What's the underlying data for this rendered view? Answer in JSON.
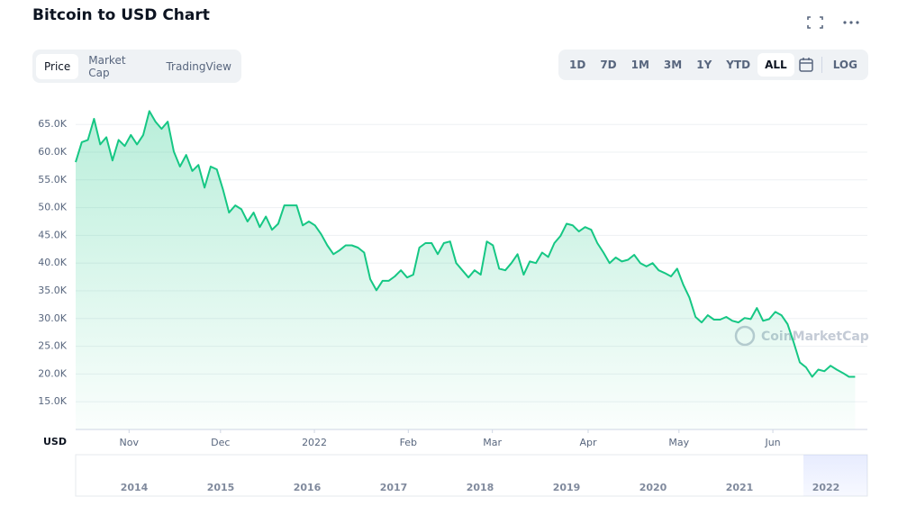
{
  "tabs": [
    "Price",
    "Market Cap",
    "TradingView"
  ],
  "ranges": [
    "1D",
    "7D",
    "1M",
    "3M",
    "1Y",
    "YTD",
    "ALL"
  ],
  "log_label": "LOG",
  "chart_data": {
    "type": "line",
    "title": "Bitcoin to USD Chart",
    "currency": "USD",
    "watermark": "CoinMarketCap",
    "color": "#16c784",
    "grid": true,
    "ylim": [
      10000,
      70000
    ],
    "yticks": [
      {
        "value": 15000,
        "label": "15.0K"
      },
      {
        "value": 20000,
        "label": "20.0K"
      },
      {
        "value": 25000,
        "label": "25.0K"
      },
      {
        "value": 30000,
        "label": "30.0K"
      },
      {
        "value": 35000,
        "label": "35.0K"
      },
      {
        "value": 40000,
        "label": "40.0K"
      },
      {
        "value": 45000,
        "label": "45.0K"
      },
      {
        "value": 50000,
        "label": "50.0K"
      },
      {
        "value": 55000,
        "label": "55.0K"
      },
      {
        "value": 60000,
        "label": "60.0K"
      },
      {
        "value": 65000,
        "label": "65.0K"
      }
    ],
    "xlim": [
      0,
      129
    ],
    "xticks": [
      {
        "value": 8.7,
        "label": "Nov"
      },
      {
        "value": 23.6,
        "label": "Dec"
      },
      {
        "value": 38.9,
        "label": "2022"
      },
      {
        "value": 54.2,
        "label": "Feb"
      },
      {
        "value": 67.9,
        "label": "Mar"
      },
      {
        "value": 83.5,
        "label": "Apr"
      },
      {
        "value": 98.3,
        "label": "May"
      },
      {
        "value": 113.6,
        "label": "Jun"
      }
    ],
    "navigator_years": [
      "2014",
      "2015",
      "2016",
      "2017",
      "2018",
      "2019",
      "2020",
      "2021",
      "2022"
    ],
    "values": [
      58200,
      61800,
      62200,
      66000,
      61400,
      62700,
      58500,
      62200,
      61100,
      63100,
      61400,
      63100,
      67400,
      65500,
      64200,
      65500,
      60100,
      57400,
      59500,
      56600,
      57700,
      53600,
      57400,
      56900,
      53300,
      49100,
      50400,
      49700,
      47500,
      49100,
      46500,
      48400,
      46000,
      47100,
      50400,
      50400,
      50400,
      46800,
      47500,
      46800,
      45200,
      43200,
      41600,
      42300,
      43200,
      43200,
      42800,
      41900,
      37100,
      35100,
      36800,
      36800,
      37600,
      38700,
      37400,
      37900,
      42800,
      43600,
      43600,
      41600,
      43600,
      43900,
      40000,
      38700,
      37400,
      38700,
      37900,
      43900,
      43200,
      39000,
      38700,
      40000,
      41600,
      37900,
      40300,
      40000,
      41900,
      41100,
      43600,
      44900,
      47100,
      46800,
      45700,
      46500,
      46000,
      43600,
      41900,
      40000,
      41000,
      40300,
      40600,
      41500,
      40000,
      39400,
      40000,
      38700,
      38200,
      37600,
      39000,
      36100,
      33800,
      30300,
      29300,
      30600,
      29800,
      29800,
      30300,
      29600,
      29300,
      30100,
      29900,
      31900,
      29600,
      29900,
      31200,
      30600,
      29000,
      25700,
      22100,
      21200,
      19500,
      20800,
      20500,
      21500,
      20800,
      20200,
      19500,
      19500
    ]
  }
}
